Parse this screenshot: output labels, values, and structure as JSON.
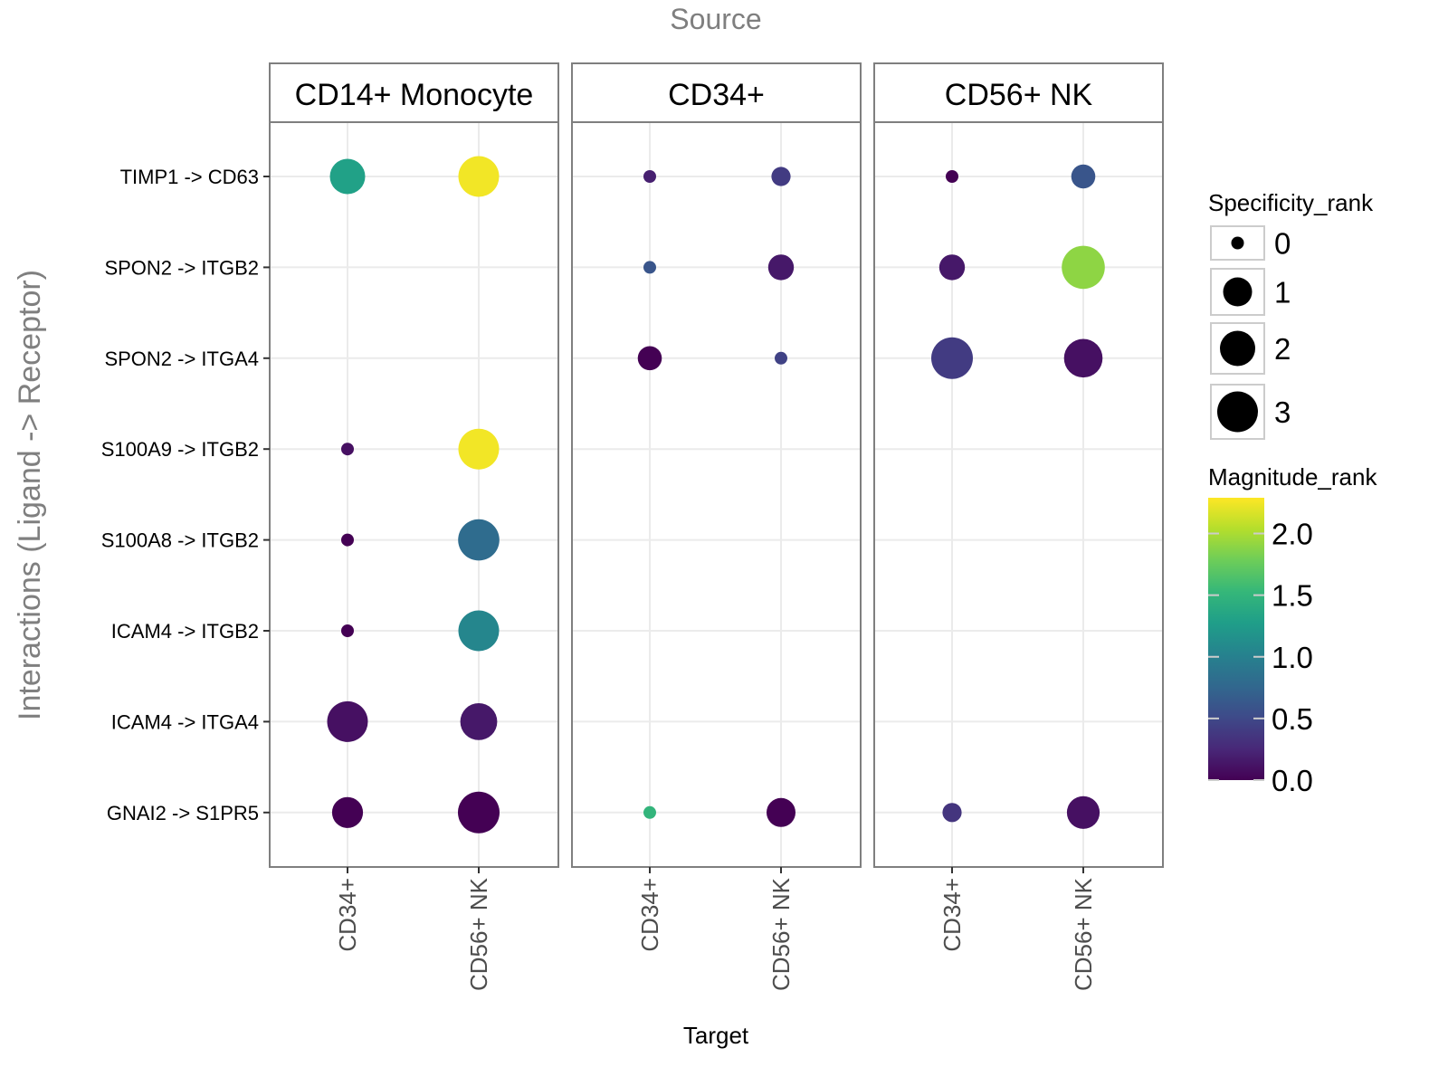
{
  "chart_data": {
    "type": "scatter",
    "title": "Source",
    "xlabel": "Target",
    "ylabel": "Interactions (Ligand -> Receptor)",
    "grid": true,
    "legend_position": "right",
    "facets": [
      "CD14+ Monocyte",
      "CD34+",
      "CD56+ NK"
    ],
    "targets": [
      "CD34+",
      "CD56+ NK"
    ],
    "interactions": [
      "TIMP1 -> CD63",
      "SPON2 -> ITGB2",
      "SPON2 -> ITGA4",
      "S100A9 -> ITGB2",
      "S100A8 -> ITGB2",
      "ICAM4 -> ITGB2",
      "ICAM4 -> ITGA4",
      "GNAI2 -> S1PR5"
    ],
    "size_legend": {
      "title": "Specificity_rank",
      "breaks": [
        0,
        1,
        2,
        3
      ]
    },
    "color_legend": {
      "title": "Magnitude_rank",
      "breaks": [
        0.0,
        0.5,
        1.0,
        1.5,
        2.0
      ],
      "labels": [
        "0.0",
        "0.5",
        "1.0",
        "1.5",
        "2.0"
      ],
      "range": [
        0,
        2.29
      ],
      "colormap": "viridis"
    },
    "points": [
      {
        "source": "CD14+ Monocyte",
        "target": "CD34+",
        "interaction": "TIMP1 -> CD63",
        "specificity_rank": 2.0,
        "magnitude_rank": 1.3
      },
      {
        "source": "CD14+ Monocyte",
        "target": "CD56+ NK",
        "interaction": "TIMP1 -> CD63",
        "specificity_rank": 3.0,
        "magnitude_rank": 2.25
      },
      {
        "source": "CD14+ Monocyte",
        "target": "CD34+",
        "interaction": "S100A9 -> ITGB2",
        "specificity_rank": 0.0,
        "magnitude_rank": 0.1
      },
      {
        "source": "CD14+ Monocyte",
        "target": "CD56+ NK",
        "interaction": "S100A9 -> ITGB2",
        "specificity_rank": 3.0,
        "magnitude_rank": 2.25
      },
      {
        "source": "CD14+ Monocyte",
        "target": "CD34+",
        "interaction": "S100A8 -> ITGB2",
        "specificity_rank": 0.0,
        "magnitude_rank": 0.0
      },
      {
        "source": "CD14+ Monocyte",
        "target": "CD56+ NK",
        "interaction": "S100A8 -> ITGB2",
        "specificity_rank": 3.1,
        "magnitude_rank": 0.8
      },
      {
        "source": "CD14+ Monocyte",
        "target": "CD34+",
        "interaction": "ICAM4 -> ITGB2",
        "specificity_rank": 0.0,
        "magnitude_rank": 0.0
      },
      {
        "source": "CD14+ Monocyte",
        "target": "CD56+ NK",
        "interaction": "ICAM4 -> ITGB2",
        "specificity_rank": 3.0,
        "magnitude_rank": 1.05
      },
      {
        "source": "CD14+ Monocyte",
        "target": "CD34+",
        "interaction": "ICAM4 -> ITGA4",
        "specificity_rank": 3.0,
        "magnitude_rank": 0.1
      },
      {
        "source": "CD14+ Monocyte",
        "target": "CD56+ NK",
        "interaction": "ICAM4 -> ITGA4",
        "specificity_rank": 2.3,
        "magnitude_rank": 0.15
      },
      {
        "source": "CD14+ Monocyte",
        "target": "CD34+",
        "interaction": "GNAI2 -> S1PR5",
        "specificity_rank": 1.3,
        "magnitude_rank": 0.0
      },
      {
        "source": "CD14+ Monocyte",
        "target": "CD56+ NK",
        "interaction": "GNAI2 -> S1PR5",
        "specificity_rank": 3.2,
        "magnitude_rank": 0.0
      },
      {
        "source": "CD34+",
        "target": "CD34+",
        "interaction": "TIMP1 -> CD63",
        "specificity_rank": 0.0,
        "magnitude_rank": 0.2
      },
      {
        "source": "CD34+",
        "target": "CD56+ NK",
        "interaction": "TIMP1 -> CD63",
        "specificity_rank": 0.4,
        "magnitude_rank": 0.4
      },
      {
        "source": "CD34+",
        "target": "CD34+",
        "interaction": "SPON2 -> ITGB2",
        "specificity_rank": 0.0,
        "magnitude_rank": 0.6
      },
      {
        "source": "CD34+",
        "target": "CD56+ NK",
        "interaction": "SPON2 -> ITGB2",
        "specificity_rank": 0.8,
        "magnitude_rank": 0.15
      },
      {
        "source": "CD34+",
        "target": "CD34+",
        "interaction": "SPON2 -> ITGA4",
        "specificity_rank": 0.7,
        "magnitude_rank": 0.0
      },
      {
        "source": "CD34+",
        "target": "CD56+ NK",
        "interaction": "SPON2 -> ITGA4",
        "specificity_rank": 0.0,
        "magnitude_rank": 0.45
      },
      {
        "source": "CD34+",
        "target": "CD34+",
        "interaction": "GNAI2 -> S1PR5",
        "specificity_rank": 0.0,
        "magnitude_rank": 1.5
      },
      {
        "source": "CD34+",
        "target": "CD56+ NK",
        "interaction": "GNAI2 -> S1PR5",
        "specificity_rank": 1.0,
        "magnitude_rank": 0.0
      },
      {
        "source": "CD56+ NK",
        "target": "CD34+",
        "interaction": "TIMP1 -> CD63",
        "specificity_rank": 0.0,
        "magnitude_rank": 0.0
      },
      {
        "source": "CD56+ NK",
        "target": "CD56+ NK",
        "interaction": "TIMP1 -> CD63",
        "specificity_rank": 0.7,
        "magnitude_rank": 0.6
      },
      {
        "source": "CD56+ NK",
        "target": "CD34+",
        "interaction": "SPON2 -> ITGB2",
        "specificity_rank": 0.8,
        "magnitude_rank": 0.15
      },
      {
        "source": "CD56+ NK",
        "target": "CD56+ NK",
        "interaction": "SPON2 -> ITGB2",
        "specificity_rank": 3.5,
        "magnitude_rank": 1.9
      },
      {
        "source": "CD56+ NK",
        "target": "CD34+",
        "interaction": "SPON2 -> ITGA4",
        "specificity_rank": 3.2,
        "magnitude_rank": 0.4
      },
      {
        "source": "CD56+ NK",
        "target": "CD56+ NK",
        "interaction": "SPON2 -> ITGA4",
        "specificity_rank": 2.6,
        "magnitude_rank": 0.1
      },
      {
        "source": "CD56+ NK",
        "target": "CD34+",
        "interaction": "GNAI2 -> S1PR5",
        "specificity_rank": 0.4,
        "magnitude_rank": 0.35
      },
      {
        "source": "CD56+ NK",
        "target": "CD56+ NK",
        "interaction": "GNAI2 -> S1PR5",
        "specificity_rank": 1.6,
        "magnitude_rank": 0.1
      }
    ]
  }
}
